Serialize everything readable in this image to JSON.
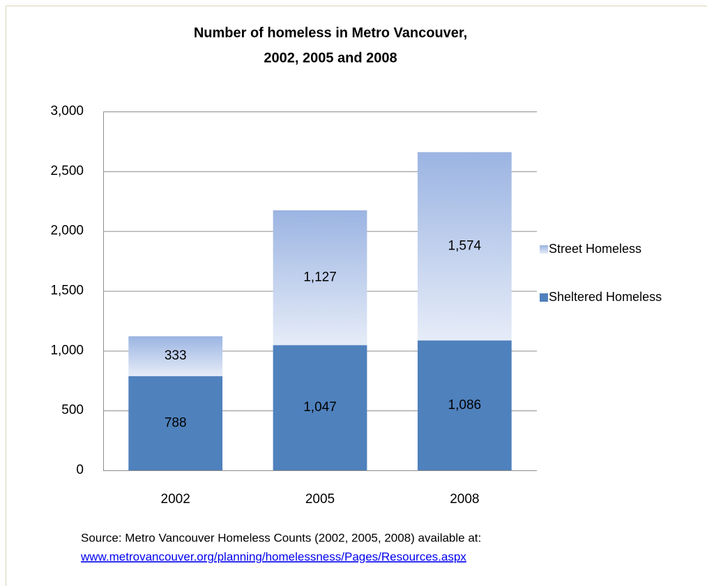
{
  "chart_data": {
    "type": "stacked_bar",
    "title": [
      "Number of homeless in Metro Vancouver,",
      "2002, 2005 and 2008"
    ],
    "categories": [
      "2002",
      "2005",
      "2008"
    ],
    "series": [
      {
        "name": "Sheltered Homeless",
        "color": "#4f81bd",
        "values": [
          788,
          1047,
          1086
        ],
        "value_labels": [
          "788",
          "1,047",
          "1,086"
        ]
      },
      {
        "name": "Street Homeless",
        "color": [
          "#9bb4e2",
          "#e6ecf8"
        ],
        "values": [
          333,
          1127,
          1574
        ],
        "value_labels": [
          "333",
          "1,127",
          "1,574"
        ]
      }
    ],
    "ylim": [
      0,
      3000
    ],
    "yticks": [
      0,
      {
        "value": 500,
        "label": "500"
      },
      {
        "value": 1000,
        "label": "1,000"
      },
      {
        "value": 1500,
        "label": "1,500"
      },
      {
        "value": 2000,
        "label": "2,000"
      },
      {
        "value": 2500,
        "label": "2,500"
      },
      {
        "value": 3000,
        "label": "3,000"
      }
    ],
    "grid": true,
    "legend": "right",
    "source": "Source:  Metro Vancouver  Homeless Counts (2002, 2005, 2008) available at:",
    "source_link": "www.metrovancouver.org/planning/homelessness/Pages/Resources.aspx"
  }
}
